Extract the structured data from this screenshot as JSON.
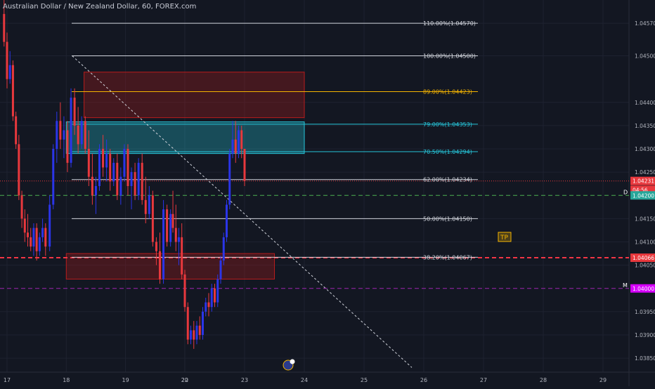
{
  "header": {
    "title": "Australian Dollar / New Zealand Dollar, 60, FOREX.com"
  },
  "colors": {
    "background": "#131722",
    "grid": "#1e2230",
    "up_candle": "#2b35e8",
    "down_candle": "#e8383d",
    "fib_line": "#d1d4dc",
    "fib_89": "#f5b400",
    "fib_zone": "#26c6da",
    "axis_text": "#b2b5be"
  },
  "chart_data": {
    "type": "candlestick",
    "ylim": [
      1.0382,
      1.0462
    ],
    "y_ticks": [
      {
        "value": 1.0457,
        "label": "1.04570"
      },
      {
        "value": 1.045,
        "label": "1.04500"
      },
      {
        "value": 1.044,
        "label": "1.04400"
      },
      {
        "value": 1.0435,
        "label": "1.04350"
      },
      {
        "value": 1.043,
        "label": "1.04300"
      },
      {
        "value": 1.0425,
        "label": "1.04250"
      },
      {
        "value": 1.0415,
        "label": "1.04150"
      },
      {
        "value": 1.041,
        "label": "1.04100"
      },
      {
        "value": 1.0405,
        "label": "1.04050"
      },
      {
        "value": 1.0395,
        "label": "1.03950"
      },
      {
        "value": 1.039,
        "label": "1.03900"
      },
      {
        "value": 1.0385,
        "label": "1.03850"
      }
    ],
    "x_ticks": [
      {
        "day": 17,
        "label": "17"
      },
      {
        "day": 18,
        "label": "18"
      },
      {
        "day": 19,
        "label": "19"
      },
      {
        "day": 20,
        "label": "20"
      },
      {
        "day": 22,
        "label": "22"
      },
      {
        "day": 23,
        "label": "23"
      },
      {
        "day": 24,
        "label": "24"
      },
      {
        "day": 25,
        "label": "25"
      },
      {
        "day": 26,
        "label": "26"
      },
      {
        "day": 27,
        "label": "27"
      },
      {
        "day": 28,
        "label": "28"
      },
      {
        "day": 29,
        "label": "29"
      }
    ],
    "fib_levels": [
      {
        "level": "110.00%",
        "price": 1.0457,
        "label": "110.00%(1.04570)",
        "color": "#d1d4dc"
      },
      {
        "level": "100.00%",
        "price": 1.045,
        "label": "100.00%(1.04500)",
        "color": "#d1d4dc"
      },
      {
        "level": "89.00%",
        "price": 1.04423,
        "label": "89.00%(1.04423)",
        "color": "#f5b400"
      },
      {
        "level": "79.00%",
        "price": 1.04353,
        "label": "79.00%(1.04353)",
        "color": "#26c6da"
      },
      {
        "level": "70.50%",
        "price": 1.04294,
        "label": "70.50%(1.04294)",
        "color": "#26c6da"
      },
      {
        "level": "62.00%",
        "price": 1.04234,
        "label": "62.00%(1.04234)",
        "color": "#d1d4dc"
      },
      {
        "level": "50.00%",
        "price": 1.0415,
        "label": "50.00%(1.04150)",
        "color": "#d1d4dc"
      },
      {
        "level": "38.20%",
        "price": 1.04067,
        "label": "38.20%(1.04067)",
        "color": "#d1d4dc"
      }
    ],
    "zones": [
      {
        "name": "upper-supply-zone",
        "from_day": 18.3,
        "to_day": 24.0,
        "top": 1.04465,
        "bottom": 1.04367,
        "color": "#b71c1c"
      },
      {
        "name": "fib-golden-zone",
        "from_day": 18.0,
        "to_day": 24.0,
        "top": 1.04358,
        "bottom": 1.0429,
        "color": "#26c6da"
      },
      {
        "name": "lower-demand-zone",
        "from_day": 18.0,
        "to_day": 23.5,
        "top": 1.04075,
        "bottom": 1.0402,
        "color": "#b71c1c"
      }
    ],
    "horizontal_lines": [
      {
        "name": "current-price-line",
        "price": 1.04231,
        "color": "#e8383d",
        "style": "dotted"
      },
      {
        "name": "daily-level-line",
        "price": 1.042,
        "color": "#4caf50",
        "style": "dashed",
        "marker": "D"
      },
      {
        "name": "tp-level-line",
        "price": 1.04066,
        "color": "#f23645",
        "style": "dashed",
        "marker": "TP"
      },
      {
        "name": "monthly-level-line",
        "price": 1.04,
        "color": "#9c27b0",
        "style": "dashed",
        "marker": "M"
      }
    ],
    "price_tags": [
      {
        "name": "current-price-tag",
        "label": "1.04231",
        "price": 1.04231,
        "bg": "#e8383d"
      },
      {
        "name": "countdown-tag",
        "label": "04:56",
        "price": 1.04212,
        "bg": "#e8383d"
      },
      {
        "name": "daily-price-tag",
        "label": "1.04200",
        "price": 1.042,
        "bg": "#26a69a"
      },
      {
        "name": "tp-price-tag",
        "label": "1.04066",
        "price": 1.04066,
        "bg": "#e8383d"
      },
      {
        "name": "monthly-price-tag",
        "label": "1.04000",
        "price": 1.04,
        "bg": "#d500f9"
      }
    ],
    "trend_line": {
      "from": {
        "day": 18.1,
        "price": 1.045
      },
      "to": {
        "day": 25.8,
        "price": 1.0383
      }
    },
    "markers": {
      "d_label": "D",
      "m_label": "M",
      "tp_label": "TP"
    },
    "candles": [
      {
        "day": 16.95,
        "o": 1.0459,
        "h": 1.0462,
        "l": 1.0452,
        "c": 1.0453
      },
      {
        "day": 17.0,
        "o": 1.0453,
        "h": 1.0455,
        "l": 1.0443,
        "c": 1.0445
      },
      {
        "day": 17.05,
        "o": 1.0445,
        "h": 1.0451,
        "l": 1.0444,
        "c": 1.0448
      },
      {
        "day": 17.1,
        "o": 1.0448,
        "h": 1.0449,
        "l": 1.0436,
        "c": 1.0437
      },
      {
        "day": 17.15,
        "o": 1.0437,
        "h": 1.0438,
        "l": 1.043,
        "c": 1.0431
      },
      {
        "day": 17.2,
        "o": 1.0431,
        "h": 1.0433,
        "l": 1.0419,
        "c": 1.042
      },
      {
        "day": 17.25,
        "o": 1.042,
        "h": 1.0421,
        "l": 1.0413,
        "c": 1.0415
      },
      {
        "day": 17.3,
        "o": 1.0415,
        "h": 1.0417,
        "l": 1.041,
        "c": 1.0412
      },
      {
        "day": 17.35,
        "o": 1.0412,
        "h": 1.0416,
        "l": 1.0409,
        "c": 1.0411
      },
      {
        "day": 17.4,
        "o": 1.0411,
        "h": 1.0413,
        "l": 1.0408,
        "c": 1.0409
      },
      {
        "day": 17.45,
        "o": 1.0409,
        "h": 1.0414,
        "l": 1.0407,
        "c": 1.0413
      },
      {
        "day": 17.5,
        "o": 1.0413,
        "h": 1.0414,
        "l": 1.0406,
        "c": 1.0408
      },
      {
        "day": 17.55,
        "o": 1.0408,
        "h": 1.0412,
        "l": 1.0407,
        "c": 1.0411
      },
      {
        "day": 17.6,
        "o": 1.0411,
        "h": 1.0415,
        "l": 1.041,
        "c": 1.0413
      },
      {
        "day": 17.65,
        "o": 1.0413,
        "h": 1.0414,
        "l": 1.0407,
        "c": 1.0409
      },
      {
        "day": 17.72,
        "o": 1.0409,
        "h": 1.042,
        "l": 1.0408,
        "c": 1.0418
      },
      {
        "day": 17.78,
        "o": 1.0418,
        "h": 1.0431,
        "l": 1.0417,
        "c": 1.043
      },
      {
        "day": 17.84,
        "o": 1.043,
        "h": 1.0438,
        "l": 1.0427,
        "c": 1.0436
      },
      {
        "day": 17.9,
        "o": 1.0436,
        "h": 1.044,
        "l": 1.043,
        "c": 1.0432
      },
      {
        "day": 17.96,
        "o": 1.0432,
        "h": 1.0437,
        "l": 1.0428,
        "c": 1.0434
      },
      {
        "day": 18.02,
        "o": 1.0434,
        "h": 1.0436,
        "l": 1.0425,
        "c": 1.0427
      },
      {
        "day": 18.08,
        "o": 1.0427,
        "h": 1.0443,
        "l": 1.0426,
        "c": 1.0441
      },
      {
        "day": 18.14,
        "o": 1.0441,
        "h": 1.0443,
        "l": 1.0433,
        "c": 1.0435
      },
      {
        "day": 18.2,
        "o": 1.0435,
        "h": 1.0439,
        "l": 1.0429,
        "c": 1.0431
      },
      {
        "day": 18.26,
        "o": 1.0431,
        "h": 1.0437,
        "l": 1.043,
        "c": 1.0436
      },
      {
        "day": 18.32,
        "o": 1.0436,
        "h": 1.0437,
        "l": 1.0429,
        "c": 1.043
      },
      {
        "day": 18.38,
        "o": 1.043,
        "h": 1.0434,
        "l": 1.0422,
        "c": 1.0424
      },
      {
        "day": 18.44,
        "o": 1.0424,
        "h": 1.0429,
        "l": 1.0418,
        "c": 1.042
      },
      {
        "day": 18.5,
        "o": 1.042,
        "h": 1.0424,
        "l": 1.0416,
        "c": 1.0422
      },
      {
        "day": 18.56,
        "o": 1.0422,
        "h": 1.0431,
        "l": 1.0421,
        "c": 1.043
      },
      {
        "day": 18.62,
        "o": 1.043,
        "h": 1.0433,
        "l": 1.0424,
        "c": 1.0426
      },
      {
        "day": 18.68,
        "o": 1.0426,
        "h": 1.0432,
        "l": 1.0423,
        "c": 1.0429
      },
      {
        "day": 18.74,
        "o": 1.0429,
        "h": 1.043,
        "l": 1.0421,
        "c": 1.0423
      },
      {
        "day": 18.8,
        "o": 1.0423,
        "h": 1.0428,
        "l": 1.0422,
        "c": 1.0427
      },
      {
        "day": 18.86,
        "o": 1.0427,
        "h": 1.0429,
        "l": 1.0419,
        "c": 1.042
      },
      {
        "day": 18.92,
        "o": 1.042,
        "h": 1.0426,
        "l": 1.0418,
        "c": 1.0424
      },
      {
        "day": 18.98,
        "o": 1.0424,
        "h": 1.0431,
        "l": 1.0423,
        "c": 1.043
      },
      {
        "day": 19.04,
        "o": 1.043,
        "h": 1.0431,
        "l": 1.042,
        "c": 1.0422
      },
      {
        "day": 19.1,
        "o": 1.0422,
        "h": 1.0426,
        "l": 1.0417,
        "c": 1.0425
      },
      {
        "day": 19.16,
        "o": 1.0425,
        "h": 1.0427,
        "l": 1.0419,
        "c": 1.042
      },
      {
        "day": 19.22,
        "o": 1.042,
        "h": 1.0428,
        "l": 1.0419,
        "c": 1.0427
      },
      {
        "day": 19.28,
        "o": 1.0427,
        "h": 1.0429,
        "l": 1.0418,
        "c": 1.0419
      },
      {
        "day": 19.34,
        "o": 1.0419,
        "h": 1.0424,
        "l": 1.0414,
        "c": 1.0416
      },
      {
        "day": 19.4,
        "o": 1.0416,
        "h": 1.0422,
        "l": 1.0415,
        "c": 1.042
      },
      {
        "day": 19.46,
        "o": 1.042,
        "h": 1.0421,
        "l": 1.0409,
        "c": 1.041
      },
      {
        "day": 19.52,
        "o": 1.041,
        "h": 1.0411,
        "l": 1.0405,
        "c": 1.0408
      },
      {
        "day": 19.58,
        "o": 1.0408,
        "h": 1.0412,
        "l": 1.0401,
        "c": 1.0402
      },
      {
        "day": 19.64,
        "o": 1.0402,
        "h": 1.0419,
        "l": 1.0401,
        "c": 1.0417
      },
      {
        "day": 19.7,
        "o": 1.0417,
        "h": 1.0418,
        "l": 1.0409,
        "c": 1.041
      },
      {
        "day": 19.76,
        "o": 1.041,
        "h": 1.0417,
        "l": 1.0409,
        "c": 1.0416
      },
      {
        "day": 19.8,
        "o": 1.0416,
        "h": 1.0421,
        "l": 1.0412,
        "c": 1.0413
      },
      {
        "day": 19.85,
        "o": 1.0413,
        "h": 1.0418,
        "l": 1.0408,
        "c": 1.041
      },
      {
        "day": 19.9,
        "o": 1.041,
        "h": 1.0413,
        "l": 1.0405,
        "c": 1.0411
      },
      {
        "day": 19.95,
        "o": 1.0411,
        "h": 1.0414,
        "l": 1.0402,
        "c": 1.0403
      },
      {
        "day": 22.0,
        "o": 1.0403,
        "h": 1.0404,
        "l": 1.0395,
        "c": 1.0396
      },
      {
        "day": 22.05,
        "o": 1.0396,
        "h": 1.0397,
        "l": 1.0388,
        "c": 1.0389
      },
      {
        "day": 22.1,
        "o": 1.0389,
        "h": 1.0392,
        "l": 1.0388,
        "c": 1.0391
      },
      {
        "day": 22.15,
        "o": 1.0391,
        "h": 1.0393,
        "l": 1.0387,
        "c": 1.0389
      },
      {
        "day": 22.2,
        "o": 1.0389,
        "h": 1.0393,
        "l": 1.0388,
        "c": 1.0392
      },
      {
        "day": 22.25,
        "o": 1.0392,
        "h": 1.0394,
        "l": 1.0389,
        "c": 1.039
      },
      {
        "day": 22.3,
        "o": 1.039,
        "h": 1.0396,
        "l": 1.0389,
        "c": 1.0395
      },
      {
        "day": 22.35,
        "o": 1.0395,
        "h": 1.0398,
        "l": 1.0394,
        "c": 1.0397
      },
      {
        "day": 22.4,
        "o": 1.0397,
        "h": 1.0399,
        "l": 1.0394,
        "c": 1.0396
      },
      {
        "day": 22.45,
        "o": 1.0396,
        "h": 1.0401,
        "l": 1.0395,
        "c": 1.04
      },
      {
        "day": 22.5,
        "o": 1.04,
        "h": 1.0401,
        "l": 1.0396,
        "c": 1.0397
      },
      {
        "day": 22.55,
        "o": 1.0397,
        "h": 1.0403,
        "l": 1.0396,
        "c": 1.0402
      },
      {
        "day": 22.6,
        "o": 1.0402,
        "h": 1.0407,
        "l": 1.0401,
        "c": 1.0406
      },
      {
        "day": 22.65,
        "o": 1.0406,
        "h": 1.0412,
        "l": 1.0405,
        "c": 1.0411
      },
      {
        "day": 22.7,
        "o": 1.0411,
        "h": 1.0419,
        "l": 1.041,
        "c": 1.0418
      },
      {
        "day": 22.75,
        "o": 1.0418,
        "h": 1.043,
        "l": 1.0417,
        "c": 1.0429
      },
      {
        "day": 22.8,
        "o": 1.0429,
        "h": 1.0436,
        "l": 1.0428,
        "c": 1.0432
      },
      {
        "day": 22.85,
        "o": 1.0432,
        "h": 1.0436,
        "l": 1.0427,
        "c": 1.0429
      },
      {
        "day": 22.9,
        "o": 1.0429,
        "h": 1.0435,
        "l": 1.0428,
        "c": 1.0434
      },
      {
        "day": 22.95,
        "o": 1.0434,
        "h": 1.0435,
        "l": 1.0428,
        "c": 1.043
      },
      {
        "day": 23.0,
        "o": 1.043,
        "h": 1.043,
        "l": 1.0422,
        "c": 1.04231
      }
    ]
  }
}
